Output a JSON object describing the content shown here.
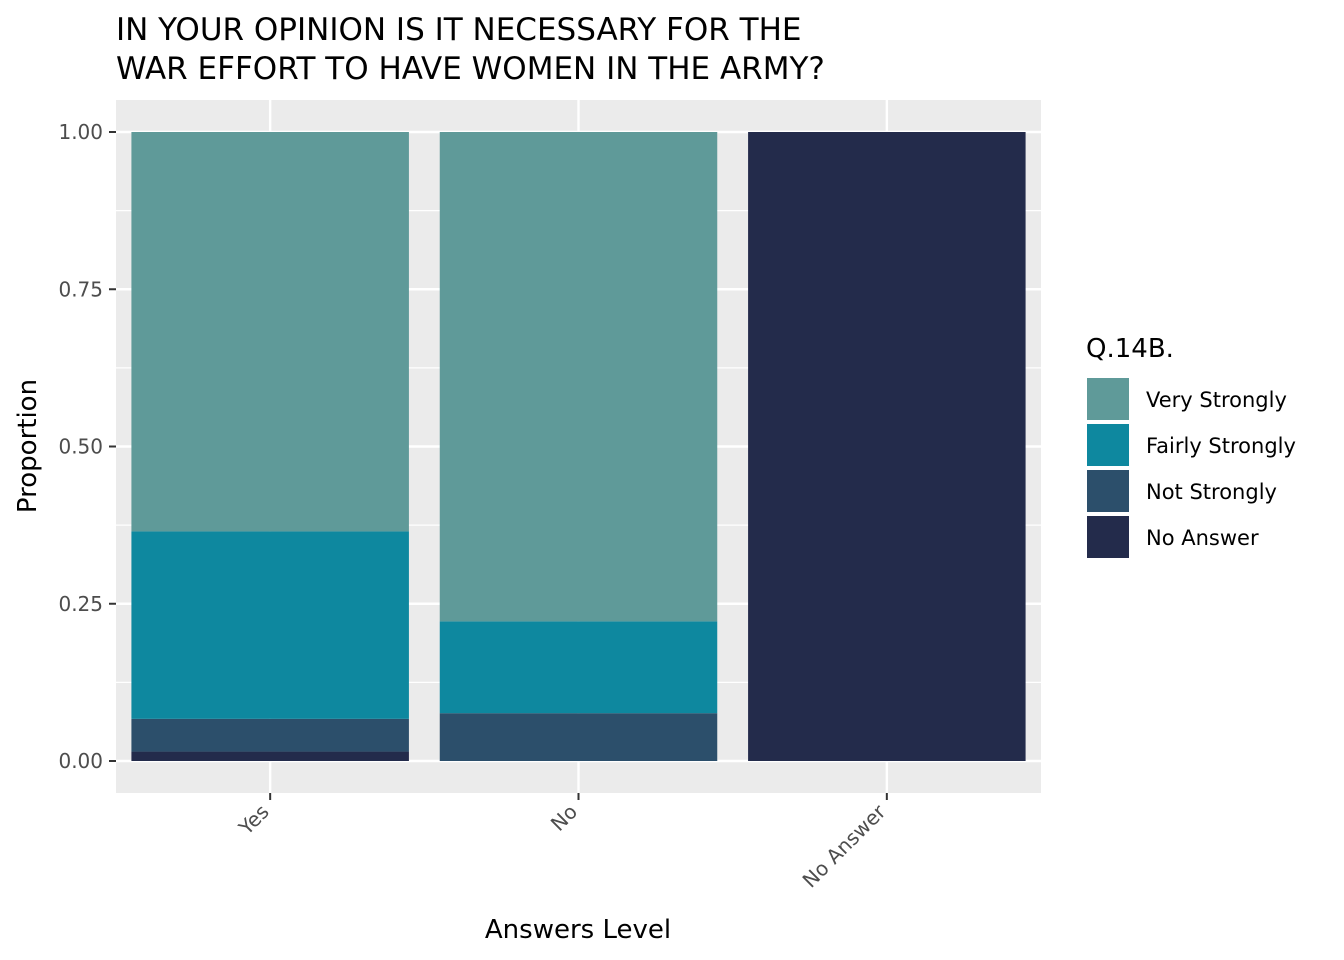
{
  "chart_data": {
    "type": "bar",
    "stacked": true,
    "title_lines": [
      "IN YOUR OPINION IS IT NECESSARY FOR THE",
      "WAR EFFORT TO HAVE WOMEN IN THE ARMY?"
    ],
    "xlabel": "Answers Level",
    "ylabel": "Proportion",
    "ylim": [
      0,
      1
    ],
    "yticks": [
      "0.00",
      "0.25",
      "0.50",
      "0.75",
      "1.00"
    ],
    "ytick_values": [
      0,
      0.25,
      0.5,
      0.75,
      1.0
    ],
    "categories": [
      "Yes",
      "No",
      "No Answer"
    ],
    "legend": {
      "title": "Q.14B.",
      "placement": "right"
    },
    "grid": true,
    "series": [
      {
        "name": "Very Strongly",
        "color": "#5F9A99",
        "values": [
          0.635,
          0.778,
          0.0
        ]
      },
      {
        "name": "Fairly Strongly",
        "color": "#0E889F",
        "values": [
          0.298,
          0.146,
          0.0
        ]
      },
      {
        "name": "Not Strongly",
        "color": "#2C4F6B",
        "values": [
          0.052,
          0.076,
          0.0
        ]
      },
      {
        "name": "No Answer",
        "color": "#232B4B",
        "values": [
          0.015,
          0.0,
          1.0
        ]
      }
    ]
  }
}
